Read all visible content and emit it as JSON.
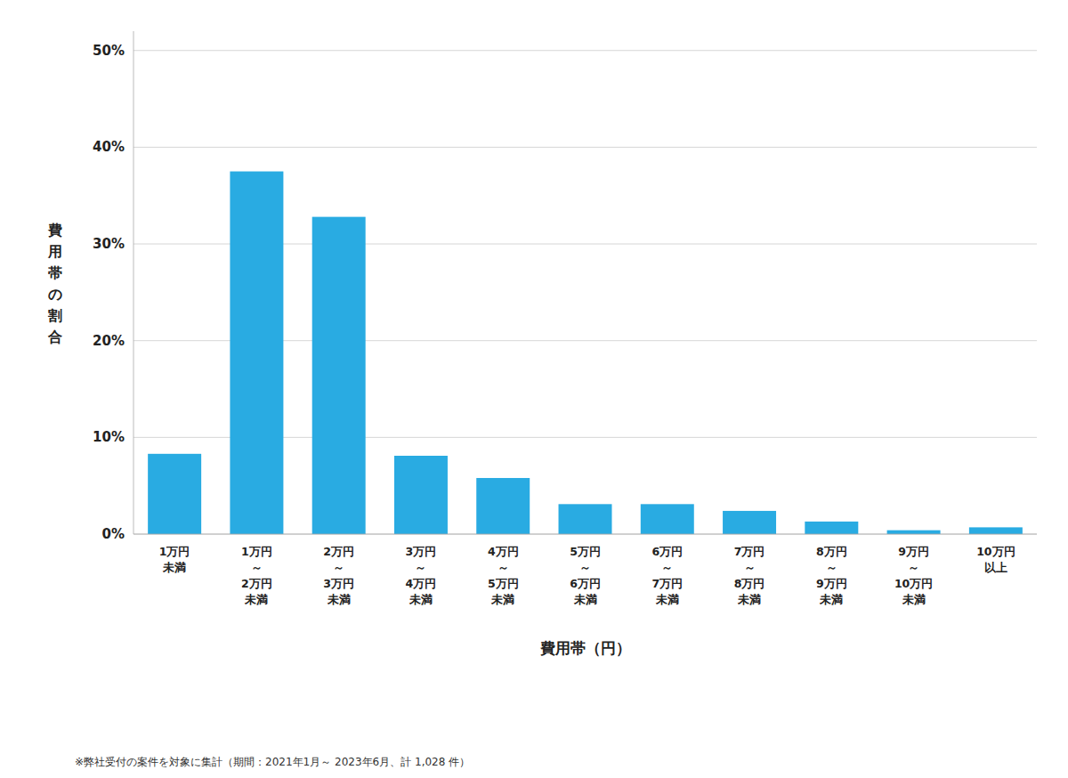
{
  "chart_data": {
    "type": "bar",
    "categories": [
      "1万円\n未満",
      "1万円\n～\n2万円\n未満",
      "2万円\n～\n3万円\n未満",
      "3万円\n～\n4万円\n未満",
      "4万円\n～\n5万円\n未満",
      "5万円\n～\n6万円\n未満",
      "6万円\n～\n7万円\n未満",
      "7万円\n～\n8万円\n未満",
      "8万円\n～\n9万円\n未満",
      "9万円\n～\n10万円\n未満",
      "10万円\n以上"
    ],
    "values": [
      8.3,
      37.5,
      32.8,
      8.1,
      5.8,
      3.1,
      3.1,
      2.4,
      1.3,
      0.4,
      0.7
    ],
    "color": "#29ABE2",
    "y_label": "費\n用\n帯\nの\n割\n合",
    "x_label": "費用帯（円）",
    "annotations": [
      "※弊社受付の案件を対象に集計（期間：2021年1月～ 2023年6月、計 1,028 件）"
    ],
    "ylim": [
      0,
      52
    ],
    "yticks": [
      {
        "value": 0,
        "label": "0%"
      },
      {
        "value": 10,
        "label": "10%"
      },
      {
        "value": 20,
        "label": "20%"
      },
      {
        "value": 30,
        "label": "30%"
      },
      {
        "value": 40,
        "label": "40%"
      },
      {
        "value": 50,
        "label": "50%"
      }
    ],
    "grid": true
  }
}
